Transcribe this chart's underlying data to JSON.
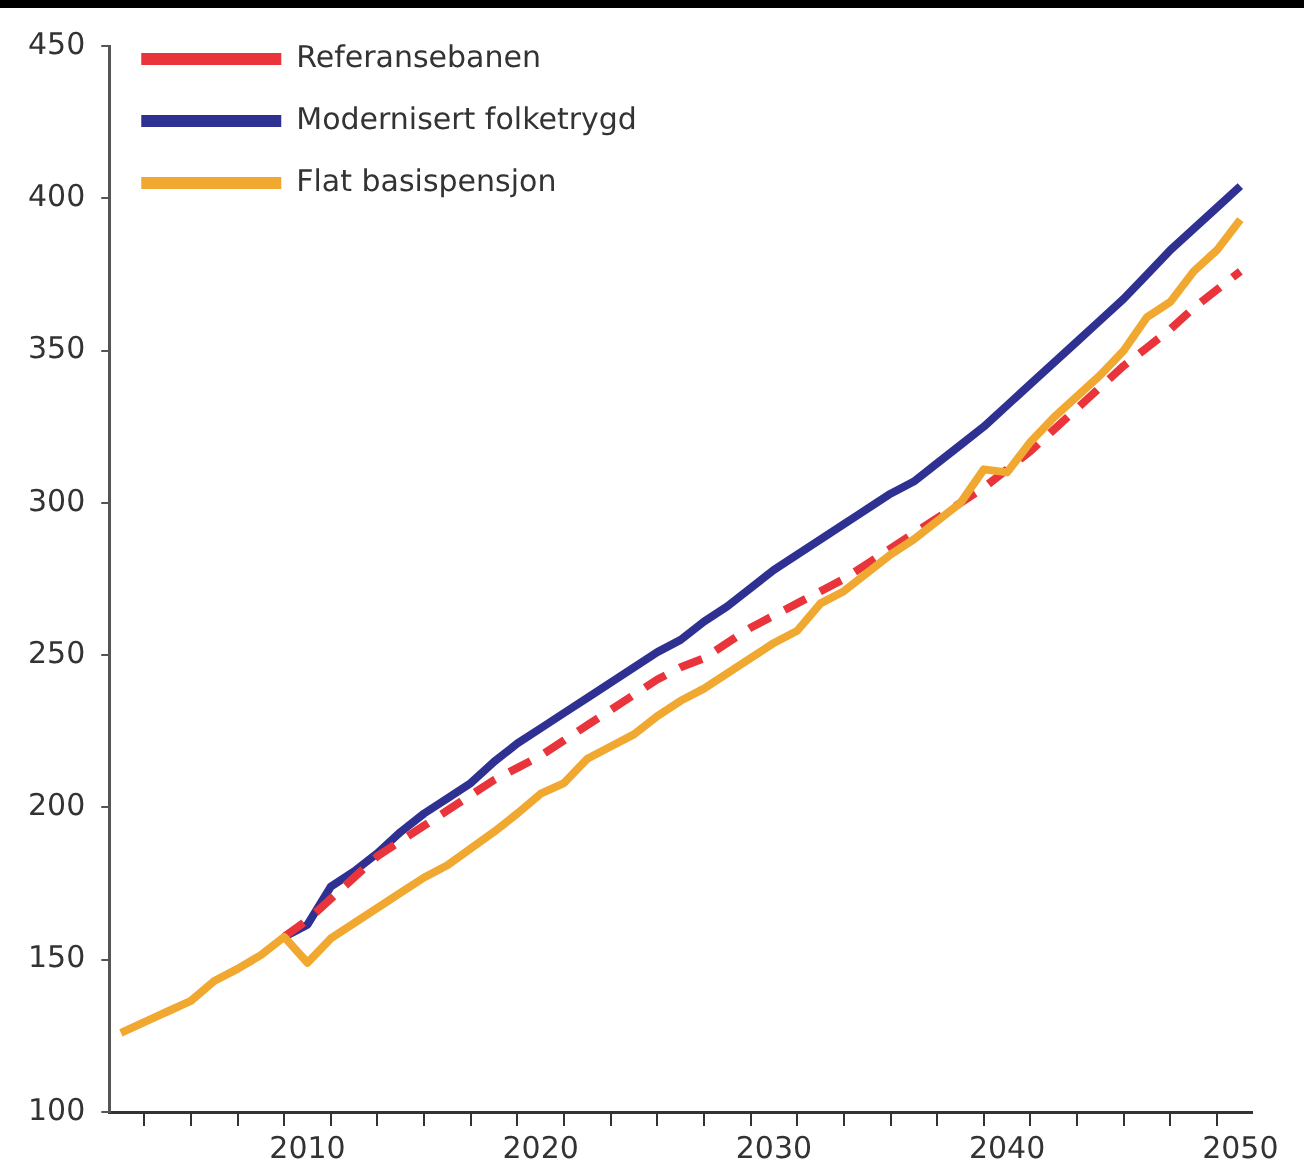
{
  "chart_data": {
    "type": "line",
    "x": [
      2002,
      2003,
      2004,
      2005,
      2006,
      2007,
      2008,
      2009,
      2010,
      2011,
      2012,
      2013,
      2014,
      2015,
      2016,
      2017,
      2018,
      2019,
      2020,
      2021,
      2022,
      2023,
      2024,
      2025,
      2026,
      2027,
      2028,
      2029,
      2030,
      2031,
      2032,
      2033,
      2034,
      2035,
      2036,
      2037,
      2038,
      2039,
      2040,
      2041,
      2042,
      2043,
      2044,
      2045,
      2046,
      2047,
      2048,
      2049,
      2050
    ],
    "series": [
      {
        "name": "Referansebanen",
        "color": "#e8343a",
        "line_style": "dashed",
        "values": [
          null,
          null,
          null,
          null,
          null,
          null,
          null,
          157.5,
          163,
          170,
          177,
          184,
          189,
          194,
          199,
          204,
          209,
          213,
          217,
          222,
          227,
          232,
          237,
          242,
          246,
          249,
          254,
          259,
          263,
          267,
          271,
          275,
          280,
          285,
          290,
          295,
          300,
          305,
          311,
          317,
          324,
          331,
          338,
          345,
          351,
          357,
          364,
          370,
          376
        ]
      },
      {
        "name": "Modernisert folketrygd",
        "color": "#2e3192",
        "line_style": "solid",
        "values": [
          null,
          null,
          null,
          null,
          null,
          null,
          null,
          157.5,
          161.5,
          174,
          179,
          185,
          192,
          198,
          203,
          208,
          215,
          221,
          226,
          231,
          236,
          241,
          246,
          251,
          255,
          261,
          266,
          272,
          278,
          283,
          288,
          293,
          298,
          303,
          307,
          313,
          319,
          325,
          332,
          339,
          346,
          353,
          360,
          367,
          375,
          383,
          390,
          397,
          404
        ]
      },
      {
        "name": "Flat basispensjon",
        "color": "#f0a830",
        "line_style": "solid",
        "values": [
          126,
          129.5,
          133,
          136.5,
          143,
          147,
          151.5,
          157.5,
          149,
          157,
          162,
          167,
          172,
          177,
          181,
          186.5,
          192,
          198,
          204.5,
          208,
          216,
          220,
          224,
          230,
          235,
          239,
          244,
          249,
          254,
          258,
          267,
          271,
          277,
          283,
          288,
          294,
          300,
          311,
          310,
          320,
          328,
          335,
          342,
          350,
          361,
          366,
          376,
          383,
          393
        ]
      }
    ],
    "xlim": [
      2001.5,
      2050.5
    ],
    "xticks": [
      {
        "value": 2003,
        "label": null
      },
      {
        "value": 2005,
        "label": null
      },
      {
        "value": 2007,
        "label": null
      },
      {
        "value": 2009,
        "label": null
      },
      2010,
      {
        "value": 2011,
        "label": null
      },
      {
        "value": 2013,
        "label": null
      },
      {
        "value": 2015,
        "label": null
      },
      {
        "value": 2017,
        "label": null
      },
      {
        "value": 2019,
        "label": null
      },
      2020,
      {
        "value": 2021,
        "label": null
      },
      {
        "value": 2023,
        "label": null
      },
      {
        "value": 2025,
        "label": null
      },
      {
        "value": 2027,
        "label": null
      },
      {
        "value": 2029,
        "label": null
      },
      2030,
      {
        "value": 2031,
        "label": null
      },
      {
        "value": 2033,
        "label": null
      },
      {
        "value": 2035,
        "label": null
      },
      {
        "value": 2037,
        "label": null
      },
      {
        "value": 2039,
        "label": null
      },
      2040,
      {
        "value": 2041,
        "label": null
      },
      {
        "value": 2043,
        "label": null
      },
      {
        "value": 2045,
        "label": null
      },
      {
        "value": 2047,
        "label": null
      },
      {
        "value": 2049,
        "label": null
      },
      2050
    ],
    "ylim": [
      100,
      450
    ],
    "yticks": [
      100,
      150,
      200,
      250,
      300,
      350,
      400,
      450
    ],
    "grid": false,
    "legend": "top left",
    "marker": "none"
  }
}
